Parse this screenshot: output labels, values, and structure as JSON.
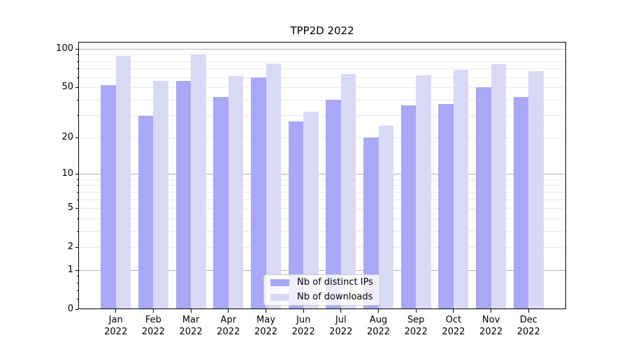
{
  "title": "TPP2D 2022",
  "colors": {
    "distinct_ips": "#a8a8f6",
    "downloads": "#d9d9f6",
    "grid_major": "#b1b1b1",
    "grid_minor": "#ebebeb",
    "axis": "#000000",
    "legend_border": "#cccccc"
  },
  "y_axis": {
    "tick_labels": [
      "100",
      "50",
      "20",
      "10",
      "5",
      "2",
      "1",
      "0"
    ],
    "tick_values": [
      100,
      50,
      20,
      10,
      5,
      2,
      1,
      0
    ],
    "minor_tick_values": [
      0.2,
      0.4,
      0.6,
      0.8,
      3,
      4,
      6,
      7,
      8,
      9,
      30,
      40,
      60,
      70,
      80,
      90
    ],
    "grid_major_values": [
      1,
      10,
      100
    ],
    "grid_minor_values": [
      2,
      3,
      4,
      5,
      6,
      7,
      8,
      9,
      20,
      30,
      40,
      50,
      60,
      70,
      80,
      90
    ]
  },
  "legend": {
    "items": [
      {
        "label": "Nb of distinct IPs",
        "color": "#a8a8f6"
      },
      {
        "label": "Nb of downloads",
        "color": "#d9d9f6"
      }
    ]
  },
  "chart_data": {
    "type": "bar",
    "title": "TPP2D 2022",
    "categories": [
      "Jan 2022",
      "Feb 2022",
      "Mar 2022",
      "Apr 2022",
      "May 2022",
      "Jun 2022",
      "Jul 2022",
      "Aug 2022",
      "Sep 2022",
      "Oct 2022",
      "Nov 2022",
      "Dec 2022"
    ],
    "series": [
      {
        "name": "Nb of distinct IPs",
        "color": "#a8a8f6",
        "values": [
          52,
          30,
          56,
          42,
          60,
          27,
          40,
          20,
          36,
          37,
          50,
          42
        ]
      },
      {
        "name": "Nb of downloads",
        "color": "#d9d9f6",
        "values": [
          88,
          56,
          91,
          61,
          77,
          32,
          64,
          25,
          62,
          69,
          76,
          67
        ]
      }
    ],
    "xlabel": "",
    "ylabel": "",
    "yscale": "log1p",
    "y_ticks": [
      0,
      1,
      2,
      5,
      10,
      20,
      50,
      100
    ],
    "ylim": [
      0,
      105
    ],
    "grid": "horizontal",
    "legend_position": "lower center"
  }
}
